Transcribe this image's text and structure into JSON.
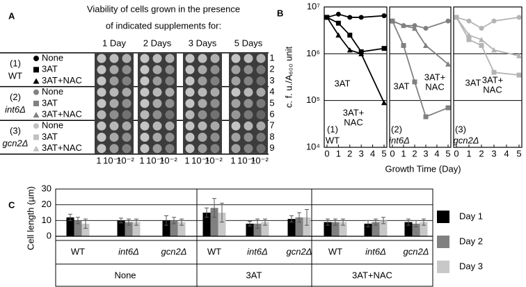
{
  "panel_labels": [
    "A",
    "B",
    "C"
  ],
  "panel_a": {
    "title": [
      "Viability of cells  grown in the presence",
      "of indicated supplements for:"
    ],
    "columns": [
      "1 Day",
      "2 Days",
      "3 Days",
      "5 Days"
    ],
    "strains": [
      {
        "number": "(1)",
        "name": "WT"
      },
      {
        "number": "(2)",
        "name": "int6Δ"
      },
      {
        "number": "(3)",
        "name": "gcn2Δ"
      }
    ],
    "supplements": [
      "None",
      "3AT",
      "3AT+NAC"
    ],
    "row_numbers": [
      "1",
      "2",
      "3",
      "4",
      "5",
      "6",
      "7",
      "8",
      "9"
    ],
    "dilutions": [
      "1",
      "10⁻¹",
      "10⁻²"
    ]
  },
  "chart_data": [
    {
      "type": "line",
      "x": [
        0,
        1,
        2,
        3,
        5
      ],
      "xlim": [
        0,
        5
      ],
      "xticks": [
        0,
        1,
        2,
        3,
        4,
        5
      ],
      "ylim": [
        10000,
        10000000
      ],
      "log_y": true,
      "yticks": [
        {
          "value": 10000,
          "label": "10⁴"
        },
        {
          "value": 100000,
          "label": "10⁵"
        },
        {
          "value": 1000000,
          "label": "10⁶"
        },
        {
          "value": 10000000,
          "label": "10⁷"
        }
      ],
      "ylabel": "c. f. u./A₆₀₀ unit",
      "xlabel": "Growth Time (Day)",
      "annotations": [
        "(1)",
        "WT",
        "3AT",
        "3AT+",
        "NAC"
      ],
      "series": [
        {
          "marker": "circle",
          "color": "#000000",
          "values": [
            6000000,
            7000000,
            6000000,
            6000000,
            6500000
          ]
        },
        {
          "marker": "square",
          "color": "#000000",
          "values": [
            6000000,
            4500000,
            2500000,
            1100000,
            1300000
          ]
        },
        {
          "marker": "triangle",
          "color": "#000000",
          "values": [
            6000000,
            2500000,
            1200000,
            1000000,
            90000
          ]
        }
      ]
    },
    {
      "type": "line",
      "x": [
        0,
        1,
        2,
        3,
        5
      ],
      "xlim": [
        0,
        5
      ],
      "xticks": [
        0,
        1,
        2,
        3,
        4,
        5
      ],
      "ylim": [
        10000,
        10000000
      ],
      "log_y": true,
      "yticks": [
        100000,
        1000000
      ],
      "annotations": [
        "(2)",
        "int6Δ",
        "3AT",
        "3AT+",
        "NAC"
      ],
      "series": [
        {
          "marker": "circle",
          "color": "#808080",
          "values": [
            5000000,
            4000000,
            4000000,
            3500000,
            5000000
          ]
        },
        {
          "marker": "square",
          "color": "#808080",
          "values": [
            5000000,
            1500000,
            250000,
            45000,
            70000
          ]
        },
        {
          "marker": "triangle",
          "color": "#808080",
          "values": [
            5000000,
            4000000,
            3500000,
            1500000,
            600000
          ]
        }
      ]
    },
    {
      "type": "line",
      "x": [
        0,
        1,
        2,
        3,
        5
      ],
      "xlim": [
        0,
        5
      ],
      "xticks": [
        0,
        1,
        2,
        3,
        4,
        5
      ],
      "ylim": [
        10000,
        10000000
      ],
      "log_y": true,
      "yticks": [
        100000,
        1000000
      ],
      "annotations": [
        "(3)",
        "gcn2Δ",
        "3AT",
        "3AT+",
        "NAC"
      ],
      "series": [
        {
          "marker": "circle",
          "color": "#b4b4b4",
          "values": [
            6000000,
            5000000,
            3500000,
            5000000,
            6000000
          ]
        },
        {
          "marker": "square",
          "color": "#b4b4b4",
          "values": [
            6000000,
            2000000,
            1500000,
            400000,
            350000
          ]
        },
        {
          "marker": "triangle",
          "color": "#b4b4b4",
          "values": [
            6000000,
            2500000,
            2000000,
            1200000,
            900000
          ]
        }
      ]
    },
    {
      "type": "bar",
      "ylabel": "Cell length (µm)",
      "ylim": [
        0,
        30
      ],
      "yticks": [
        0,
        10,
        20,
        30
      ],
      "grid": true,
      "categories": [
        "WT",
        "int6Δ",
        "gcn2Δ",
        "WT",
        "int6Δ",
        "gcn2Δ",
        "WT",
        "int6Δ",
        "gcn2Δ"
      ],
      "groups": [
        "None",
        "3AT",
        "3AT+NAC"
      ],
      "series": [
        {
          "name": "Day 1",
          "color": "#000000",
          "values": [
            12,
            10,
            10,
            15,
            8,
            11,
            9,
            8,
            9
          ],
          "errors": [
            2,
            1.5,
            3,
            3,
            1.5,
            2,
            2,
            2,
            2
          ]
        },
        {
          "name": "Day 2",
          "color": "#808080",
          "values": [
            10,
            9,
            10,
            18,
            8,
            12,
            9,
            9,
            8
          ],
          "errors": [
            2,
            2,
            2,
            6,
            3,
            3,
            2,
            2,
            2
          ]
        },
        {
          "name": "Day 3",
          "color": "#c8c8c8",
          "values": [
            8,
            9,
            9,
            15,
            9,
            12,
            9,
            10,
            9
          ],
          "errors": [
            3,
            2,
            2,
            6,
            2,
            5,
            2,
            2,
            2
          ]
        }
      ]
    }
  ]
}
